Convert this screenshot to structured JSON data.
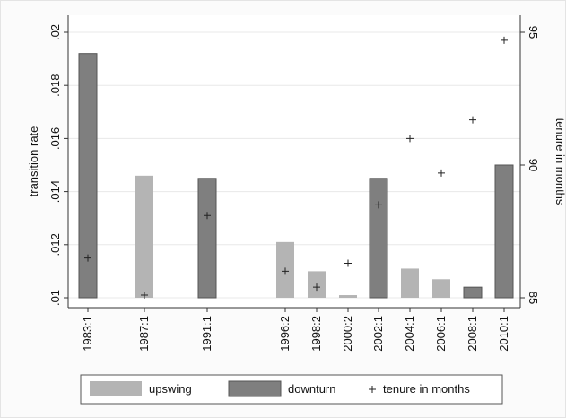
{
  "chart_data": {
    "type": "bar",
    "categories": [
      "1983:1",
      "1987:1",
      "1991:1",
      "1996:2",
      "1998:2",
      "2000:2",
      "2002:1",
      "2004:1",
      "2006:1",
      "2008:1",
      "2010:1"
    ],
    "series": [
      {
        "name": "upswing",
        "color": "#b4b4b4",
        "values": [
          null,
          0.0146,
          null,
          0.0121,
          0.011,
          0.0101,
          null,
          0.0111,
          0.0107,
          null,
          null
        ]
      },
      {
        "name": "downturn",
        "color": "#7f7f7f",
        "values": [
          0.0192,
          null,
          0.0145,
          null,
          null,
          null,
          0.0145,
          null,
          null,
          0.0104,
          0.015
        ]
      },
      {
        "name": "tenure in months",
        "type": "scatter",
        "marker": "+",
        "color": "#222222",
        "axis": "y2",
        "values": [
          86.5,
          85.1,
          88.1,
          86.0,
          85.4,
          86.3,
          88.5,
          91.0,
          89.7,
          91.7,
          94.7
        ]
      }
    ],
    "y_label": "transition rate",
    "y2_label": "tenure in months",
    "ylim": [
      0.01,
      0.02
    ],
    "yticks": [
      {
        "value": 0.01,
        "label": ".01"
      },
      {
        "value": 0.012,
        "label": ".012"
      },
      {
        "value": 0.014,
        "label": ".014"
      },
      {
        "value": 0.016,
        "label": ".016"
      },
      {
        "value": 0.018,
        "label": ".018"
      },
      {
        "value": 0.02,
        "label": ".02"
      }
    ],
    "y2lim": [
      85,
      95
    ],
    "y2ticks": [
      85,
      90,
      95
    ],
    "grid": true,
    "legend": "bottom"
  }
}
